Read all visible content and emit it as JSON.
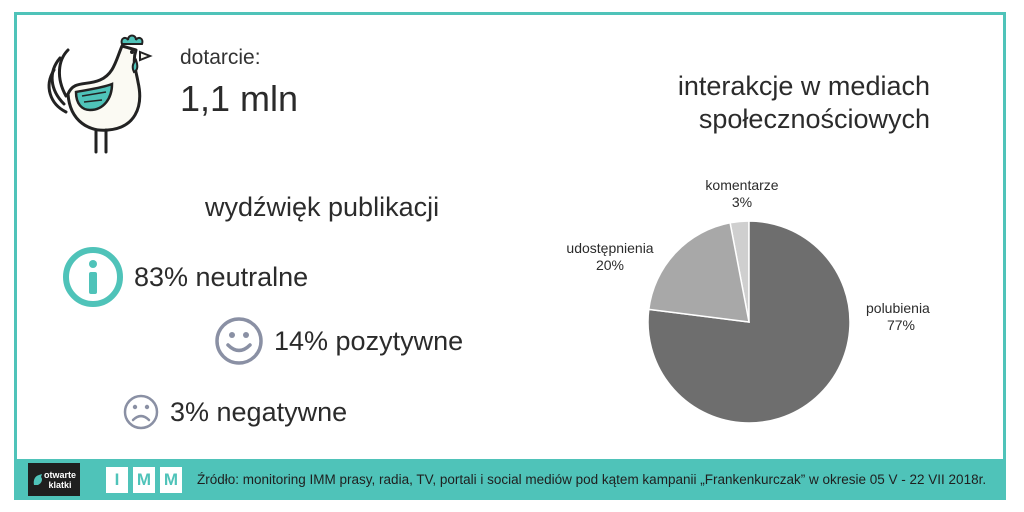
{
  "reach": {
    "label": "dotarcie:",
    "value": "1,1 mln"
  },
  "sentiment": {
    "title": "wydźwięk publikacji",
    "items": [
      {
        "text": "83% neutralne",
        "icon": "info-icon"
      },
      {
        "text": "14% pozytywne",
        "icon": "smiley-icon"
      },
      {
        "text": "3% negatywne",
        "icon": "sad-face-icon"
      }
    ]
  },
  "chart_title_lines": [
    "interakcje w mediach",
    "społecznościowych"
  ],
  "chart_data": {
    "type": "pie",
    "title": "interakcje w mediach społecznościowych",
    "slices": [
      {
        "label": "komentarze",
        "value_label": "3%",
        "value": 3,
        "color": "#cfcfcf"
      },
      {
        "label": "polubienia",
        "value_label": "77%",
        "value": 77,
        "color": "#6e6e6e"
      },
      {
        "label": "udostępnienia",
        "value_label": "20%",
        "value": 20,
        "color": "#a8a8a8"
      }
    ]
  },
  "footer": {
    "logo_text": [
      "otwarte",
      "klatki"
    ],
    "imm_letters": [
      "I",
      "M",
      "M"
    ],
    "source": "Źródło: monitoring IMM prasy, radia, TV, portali i social mediów pod kątem kampanii „Frankenkurczak” w okresie 05 V - 22 VII 2018r."
  },
  "colors": {
    "accent": "#4fc3b9",
    "icon_gray": "#8a90a4"
  }
}
